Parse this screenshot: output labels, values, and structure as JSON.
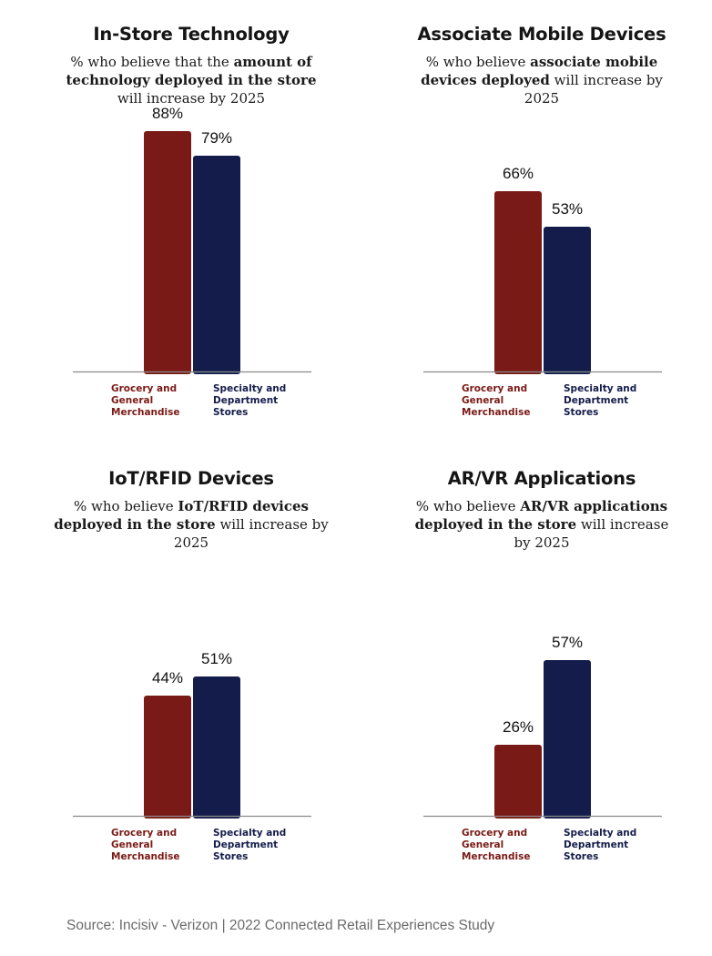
{
  "colors": {
    "grocery": "#7a1a16",
    "specialty": "#141c4b",
    "baseline": "#8a8a8a"
  },
  "source": "Source: Incisiv - Verizon | 2022 Connected Retail Experiences Study",
  "chart_data": [
    {
      "type": "bar",
      "title": "In-Store Technology",
      "subtitle": [
        {
          "text": "% who believe that the ",
          "bold": false
        },
        {
          "text": "amount of technology deployed in the store",
          "bold": true
        },
        {
          "text": " will increase by 2025",
          "bold": false
        }
      ],
      "categories": [
        "Grocery and\nGeneral\nMerchandise",
        "Specialty and\nDepartment\nStores"
      ],
      "values": [
        88,
        79
      ],
      "value_labels": [
        "88%",
        "79%"
      ],
      "ylim": [
        0,
        100
      ]
    },
    {
      "type": "bar",
      "title": "Associate Mobile Devices",
      "subtitle": [
        {
          "text": "% who believe ",
          "bold": false
        },
        {
          "text": "associate mobile devices deployed",
          "bold": true
        },
        {
          "text": " will increase by 2025",
          "bold": false
        }
      ],
      "categories": [
        "Grocery and\nGeneral\nMerchandise",
        "Specialty and\nDepartment\nStores"
      ],
      "values": [
        66,
        53
      ],
      "value_labels": [
        "66%",
        "53%"
      ],
      "ylim": [
        0,
        100
      ]
    },
    {
      "type": "bar",
      "title": "IoT/RFID Devices",
      "subtitle": [
        {
          "text": "% who believe ",
          "bold": false
        },
        {
          "text": "IoT/RFID devices deployed in the store",
          "bold": true
        },
        {
          "text": " will increase by 2025",
          "bold": false
        }
      ],
      "categories": [
        "Grocery and\nGeneral\nMerchandise",
        "Specialty and\nDepartment\nStores"
      ],
      "values": [
        44,
        51
      ],
      "value_labels": [
        "44%",
        "51%"
      ],
      "ylim": [
        0,
        100
      ]
    },
    {
      "type": "bar",
      "title": "AR/VR Applications",
      "subtitle": [
        {
          "text": "% who believe ",
          "bold": false
        },
        {
          "text": "AR/VR applications deployed in the store",
          "bold": true
        },
        {
          "text": " will increase by 2025",
          "bold": false
        }
      ],
      "categories": [
        "Grocery and\nGeneral\nMerchandise",
        "Specialty and\nDepartment\nStores"
      ],
      "values": [
        26,
        57
      ],
      "value_labels": [
        "26%",
        "57%"
      ],
      "ylim": [
        0,
        100
      ]
    }
  ]
}
